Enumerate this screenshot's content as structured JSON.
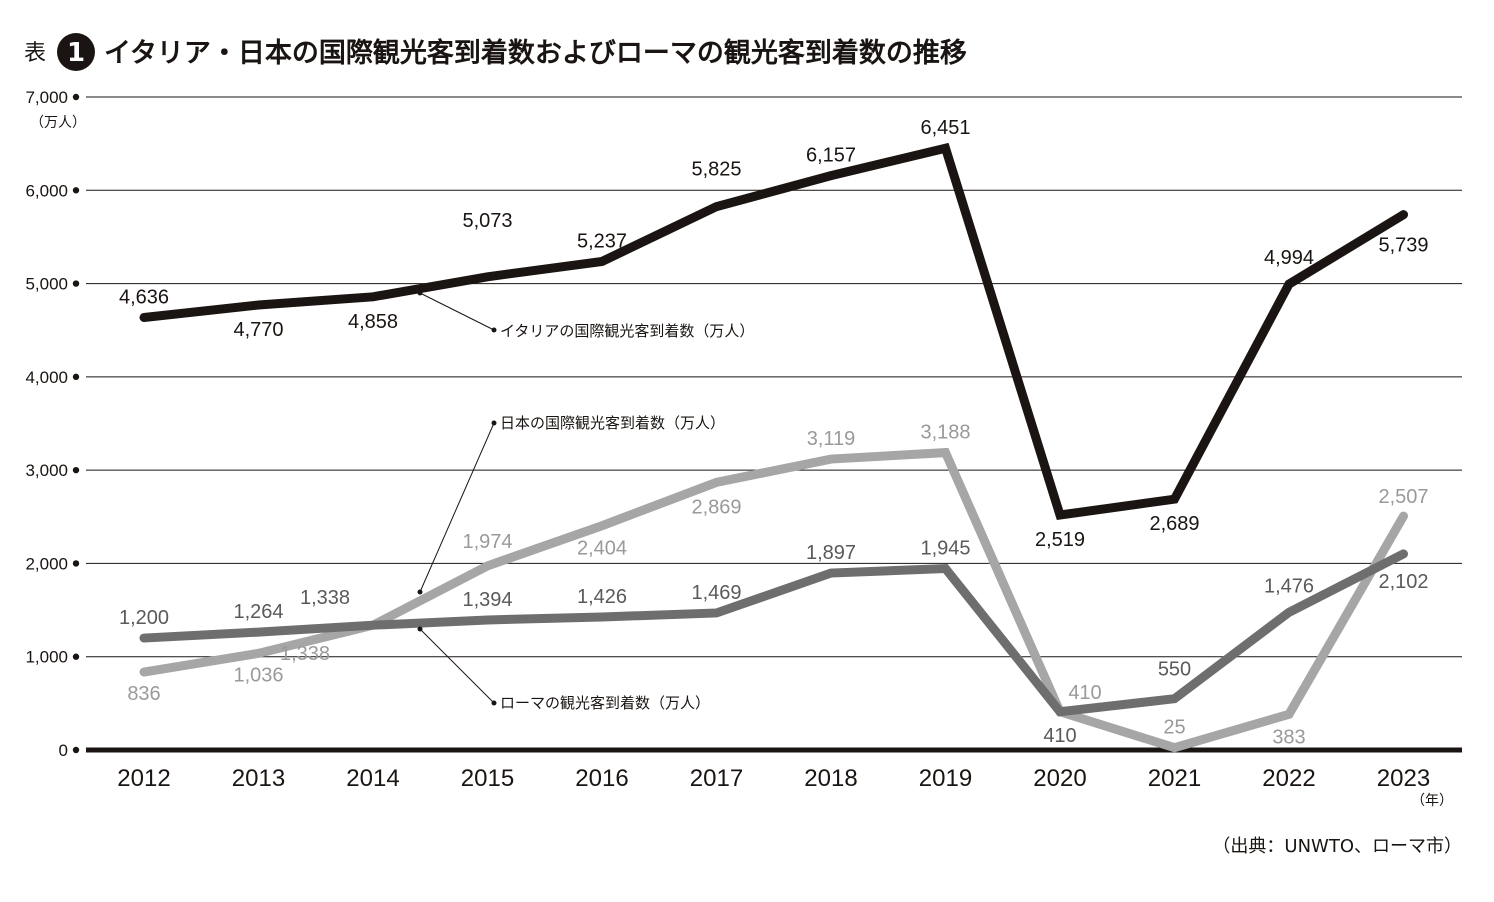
{
  "header": {
    "table_label": "表",
    "table_number": "1",
    "title": "イタリア・日本の国際観光客到着数およびローマの観光客到着数の推移"
  },
  "source": "（出典：UNWTO、ローマ市）",
  "y_unit": "（万人）",
  "x_unit": "（年）",
  "chart_data": {
    "type": "line",
    "categories": [
      "2012",
      "2013",
      "2014",
      "2015",
      "2016",
      "2017",
      "2018",
      "2019",
      "2020",
      "2021",
      "2022",
      "2023"
    ],
    "ylim": [
      0,
      7000
    ],
    "yticks": [
      0,
      1000,
      2000,
      3000,
      4000,
      5000,
      6000,
      7000
    ],
    "ytick_labels": [
      "0",
      "1,000",
      "2,000",
      "3,000",
      "4,000",
      "5,000",
      "6,000",
      "7,000"
    ],
    "grid": true,
    "series": [
      {
        "name": "イタリアの国際観光客到着数（万人）",
        "color": "#1a1512",
        "values": [
          4636,
          4770,
          4858,
          5073,
          5237,
          5825,
          6157,
          6451,
          2519,
          2689,
          4994,
          5739
        ],
        "labels": [
          "4,636",
          "4,770",
          "4,858",
          "5,073",
          "5,237",
          "5,825",
          "6,157",
          "6,451",
          "2,519",
          "2,689",
          "4,994",
          "5,739"
        ]
      },
      {
        "name": "日本の国際観光客到着数（万人）",
        "color": "#a6a6a6",
        "values": [
          836,
          1036,
          1338,
          1974,
          2404,
          2869,
          3119,
          3188,
          410,
          25,
          383,
          2507
        ],
        "labels": [
          "836",
          "1,036",
          "1,338",
          "1,974",
          "2,404",
          "2,869",
          "3,119",
          "3,188",
          "410",
          "25",
          "383",
          "2,507"
        ]
      },
      {
        "name": "ローマの観光客到着数（万人）",
        "color": "#6e6e6e",
        "values": [
          1200,
          1264,
          1338,
          1394,
          1426,
          1469,
          1897,
          1945,
          410,
          550,
          1476,
          2102
        ],
        "labels": [
          "1,200",
          "1,264",
          "1,338",
          "1,394",
          "1,426",
          "1,469",
          "1,897",
          "1,945",
          "410",
          "550",
          "1,476",
          "2,102"
        ]
      }
    ]
  }
}
